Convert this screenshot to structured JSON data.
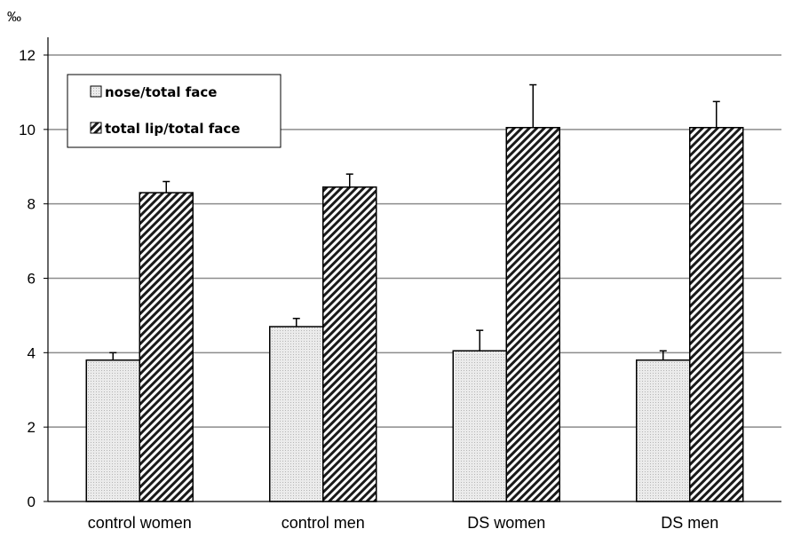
{
  "chart_data": {
    "type": "bar",
    "unit_label": "‰",
    "categories": [
      "control women",
      "control men",
      "DS women",
      "DS men"
    ],
    "series": [
      {
        "name": "nose/total face",
        "values": [
          3.8,
          4.7,
          4.05,
          3.8
        ],
        "errors": [
          0.2,
          0.22,
          0.55,
          0.25
        ],
        "fill": "#e6e6e6"
      },
      {
        "name": "total lip/total face",
        "values": [
          8.3,
          8.45,
          10.05,
          10.05
        ],
        "errors": [
          0.3,
          0.35,
          1.15,
          0.7
        ],
        "fill": "hatch"
      }
    ],
    "yticks": [
      "0",
      "2",
      "4",
      "6",
      "8",
      "10",
      "12"
    ],
    "ylim": [
      0,
      12
    ],
    "grid": true,
    "legend_position": "top-left",
    "colors": {
      "bar_outline": "#000000",
      "gridline": "#8c8c8c",
      "nose_fill": "#e6e6e6",
      "hatch_bg": "#ffffff"
    }
  }
}
